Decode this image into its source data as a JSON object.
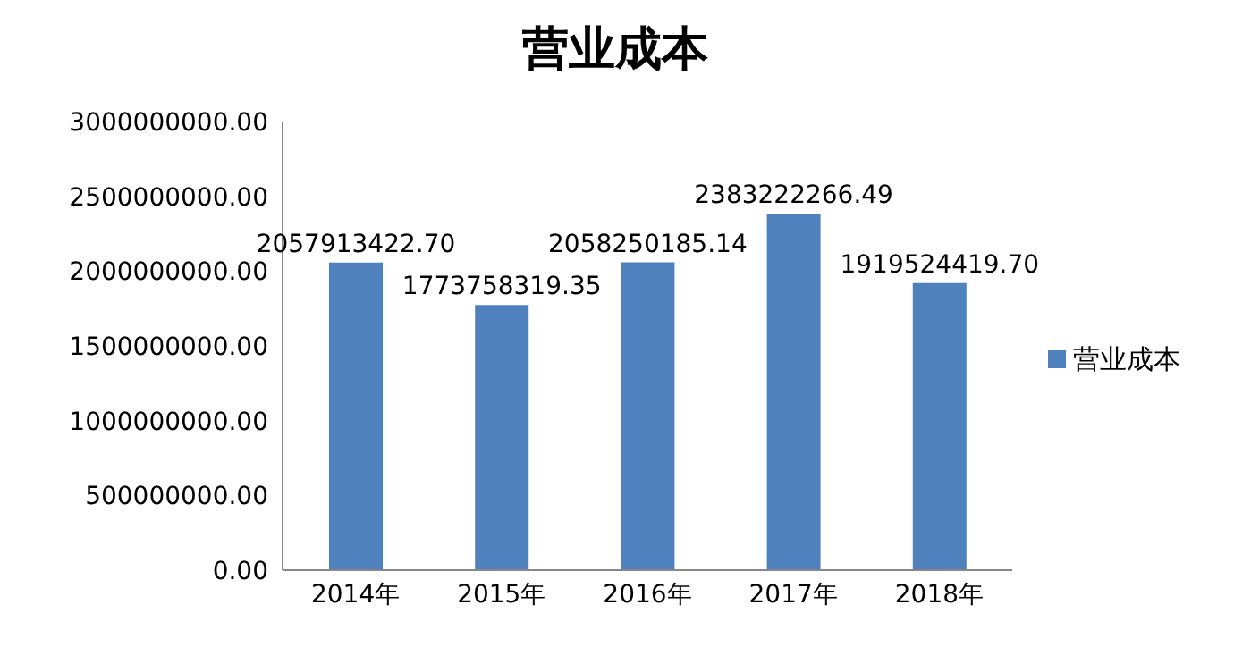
{
  "chart_data": {
    "type": "bar",
    "title": "营业成本",
    "categories": [
      "2014年",
      "2015年",
      "2016年",
      "2017年",
      "2018年"
    ],
    "series": [
      {
        "name": "营业成本",
        "color": "#4f81bd",
        "values": [
          2057913422.7,
          1773758319.35,
          2058250185.14,
          2383222266.49,
          1919524419.7
        ],
        "value_labels": [
          "2057913422.70",
          "1773758319.35",
          "2058250185.14",
          "2383222266.49",
          "1919524419.70"
        ]
      }
    ],
    "ylim": [
      0,
      3000000000
    ],
    "yticks": [
      {
        "value": 0,
        "label": "0.00"
      },
      {
        "value": 500000000,
        "label": "500000000.00"
      },
      {
        "value": 1000000000,
        "label": "1000000000.00"
      },
      {
        "value": 1500000000,
        "label": "1500000000.00"
      },
      {
        "value": 2000000000,
        "label": "2000000000.00"
      },
      {
        "value": 2500000000,
        "label": "2500000000.00"
      },
      {
        "value": 3000000000,
        "label": "3000000000.00"
      }
    ],
    "grid": false,
    "legend": "right"
  }
}
